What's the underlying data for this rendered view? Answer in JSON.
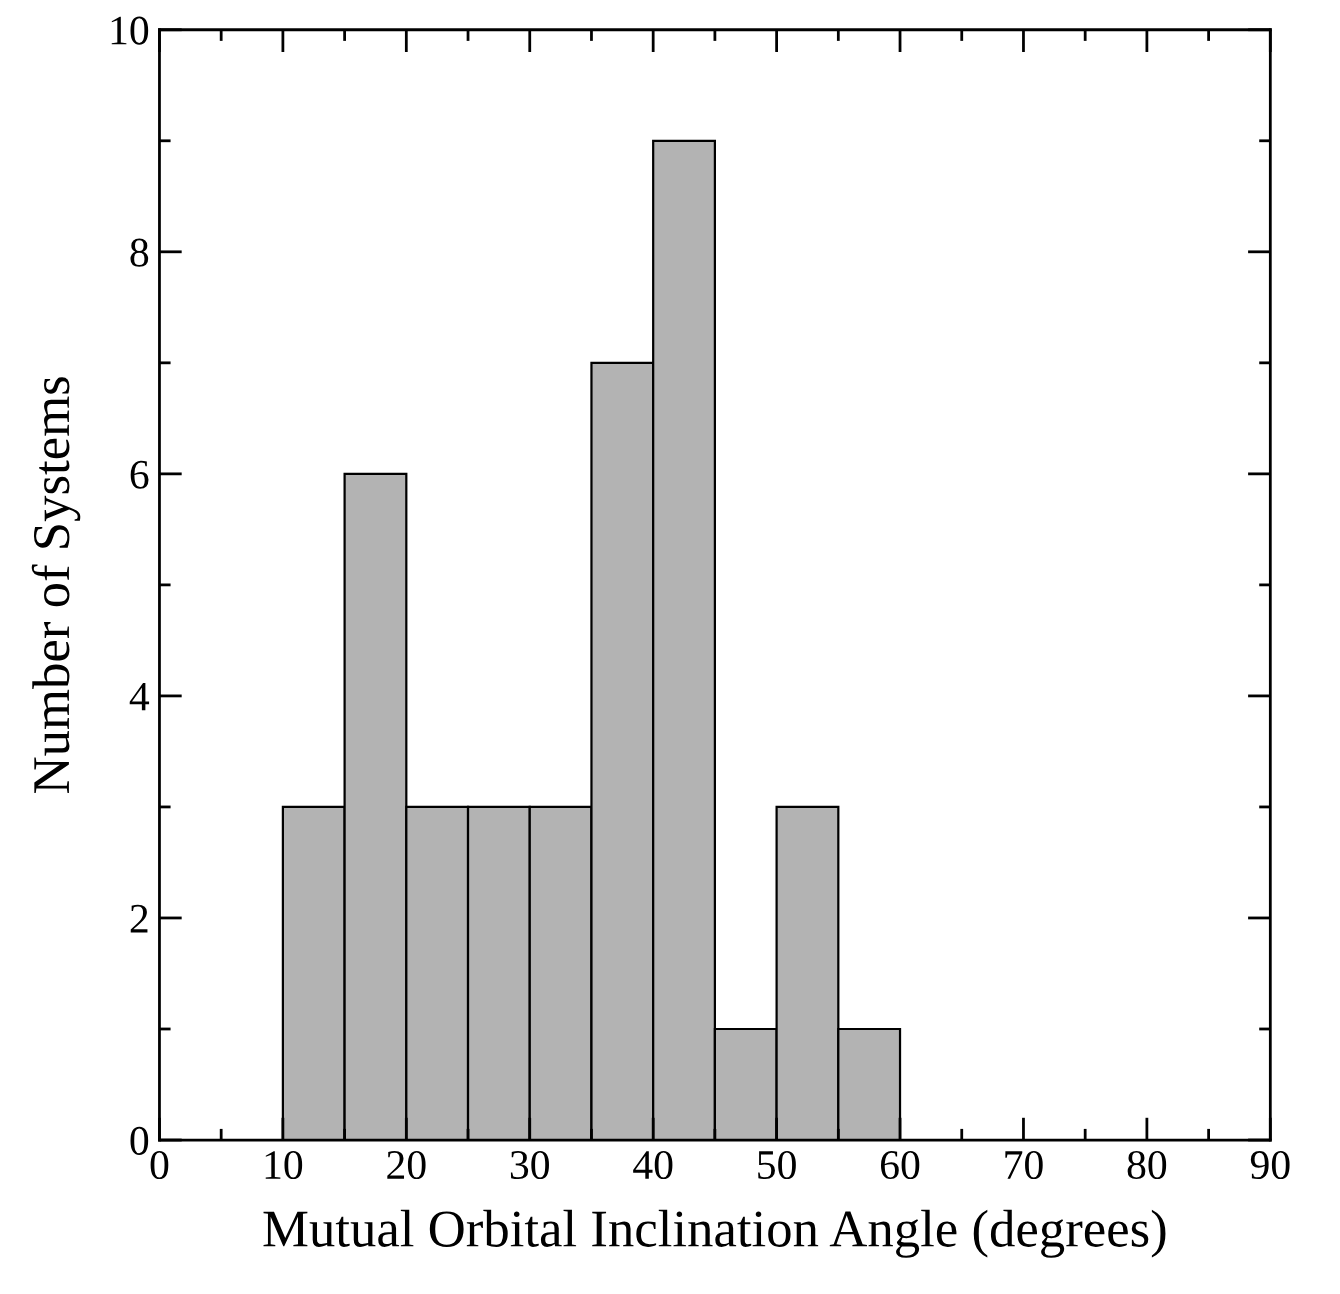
{
  "chart_data": {
    "type": "histogram",
    "xlabel": "Mutual Orbital Inclination Angle (degrees)",
    "ylabel": "Number of Systems",
    "bins": [
      10,
      15,
      20,
      25,
      30,
      35,
      40,
      45,
      50,
      55,
      60
    ],
    "values": [
      3,
      6,
      3,
      3,
      3,
      7,
      9,
      1,
      3,
      1
    ],
    "color": "#b3b3b3",
    "xlim": [
      0,
      90
    ],
    "xticks": [
      0,
      {
        "value": 5,
        "label": null
      },
      10,
      {
        "value": 15,
        "label": null
      },
      20,
      {
        "value": 25,
        "label": null
      },
      30,
      {
        "value": 35,
        "label": null
      },
      40,
      {
        "value": 45,
        "label": null
      },
      50,
      {
        "value": 55,
        "label": null
      },
      60,
      {
        "value": 65,
        "label": null
      },
      70,
      {
        "value": 75,
        "label": null
      },
      80,
      {
        "value": 85,
        "label": null
      },
      90
    ],
    "ylim": [
      0,
      10
    ],
    "yticks": [
      0,
      {
        "value": 1,
        "label": null
      },
      2,
      {
        "value": 3,
        "label": null
      },
      4,
      {
        "value": 5,
        "label": null
      },
      6,
      {
        "value": 7,
        "label": null
      },
      8,
      {
        "value": 9,
        "label": null
      },
      10
    ],
    "grid": false
  }
}
